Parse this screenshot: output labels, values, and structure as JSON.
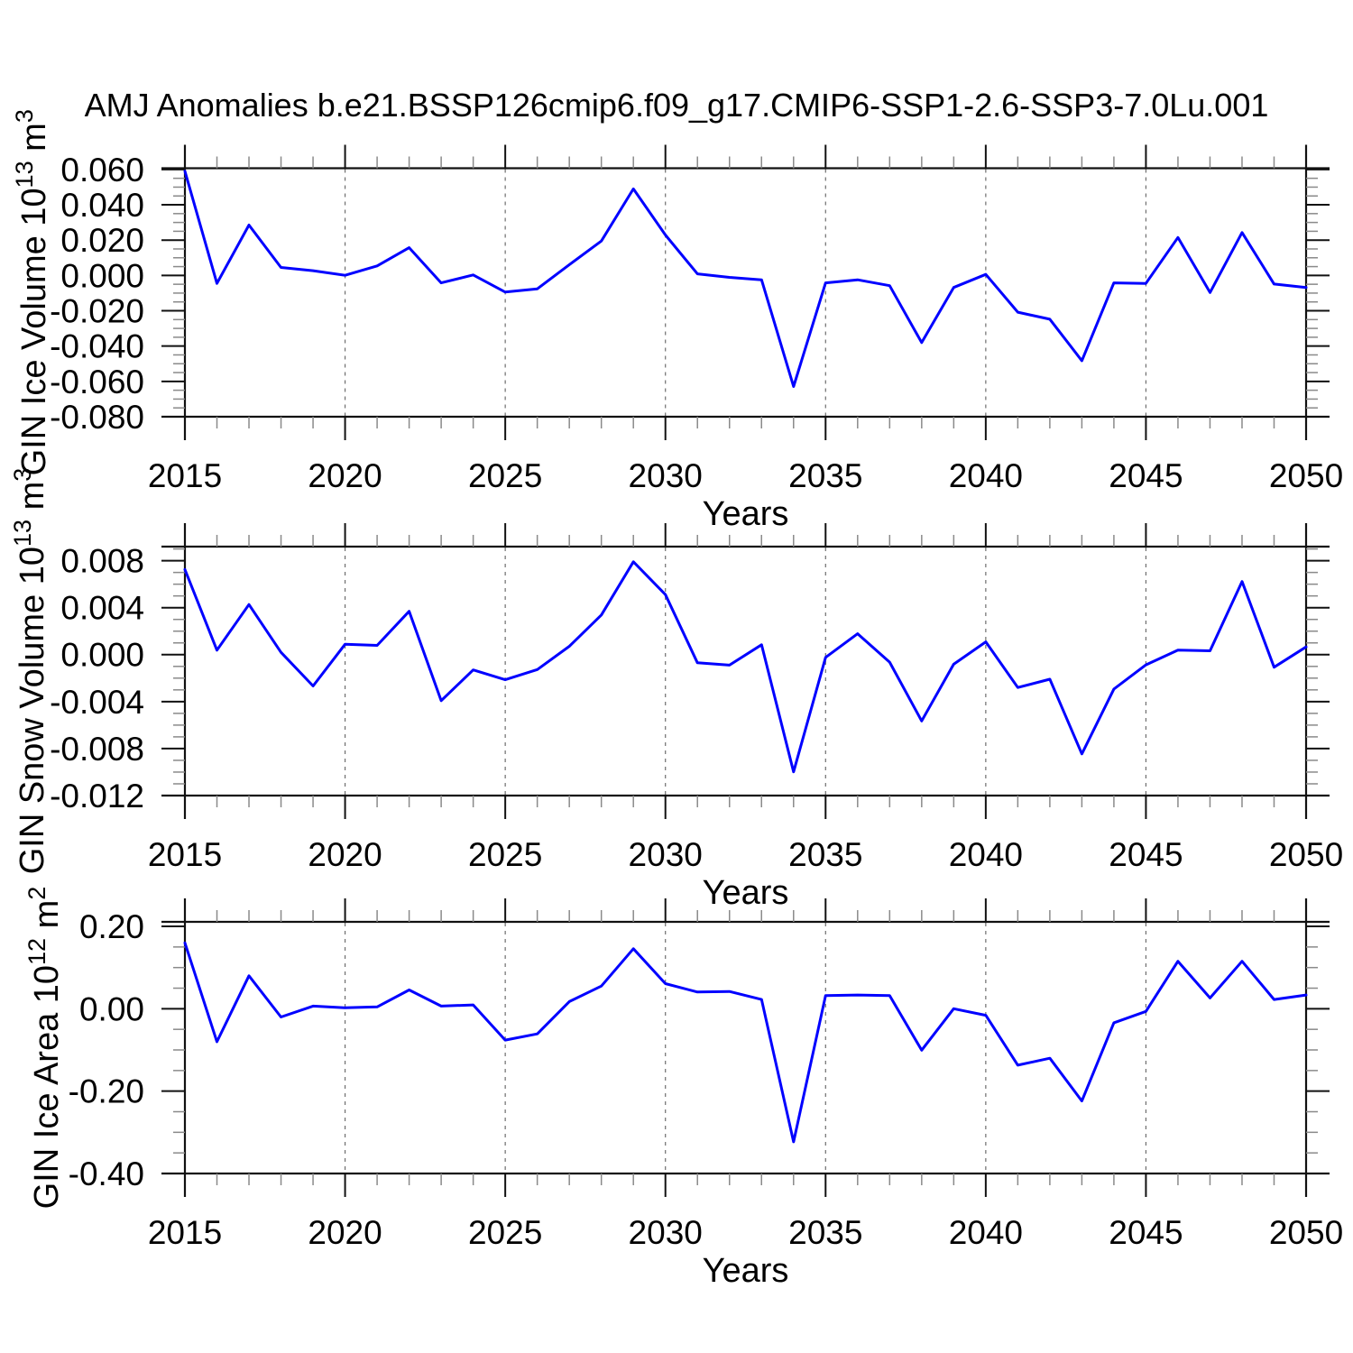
{
  "title": "AMJ Anomalies b.e21.BSSP126cmip6.f09_g17.CMIP6-SSP1-2.6-SSP3-7.0Lu.001",
  "style": {
    "line_color": "#0000ff",
    "frame_color": "#111111",
    "major_tick_color": "#111111",
    "minor_tick_color": "#8a8a8a",
    "grid_color": "#6e6e6e",
    "text_color": "#000000",
    "background": "#ffffff"
  },
  "chart_data": [
    {
      "type": "line",
      "name": "GIN Ice Volume anomalies",
      "ylabel": "GIN Ice Volume 10^13 m^3",
      "xlabel": "Years",
      "xlim": [
        2015,
        2050
      ],
      "xticks": [
        2015,
        2020,
        2025,
        2030,
        2035,
        2040,
        2045,
        2050
      ],
      "xtick_labels": [
        "2015",
        "2020",
        "2025",
        "2030",
        "2035",
        "2040",
        "2045",
        "2050"
      ],
      "xtick_minor_step": 1,
      "grid_years": [
        2020,
        2025,
        2030,
        2035,
        2040,
        2045
      ],
      "ylim": [
        -0.08,
        0.0607
      ],
      "yticks": [
        0.06,
        0.04,
        0.02,
        0.0,
        -0.02,
        -0.04,
        -0.06,
        -0.08
      ],
      "ytick_labels": [
        "0.060",
        "0.040",
        "0.020",
        "0.000",
        "-0.020",
        "-0.040",
        "-0.060",
        "-0.080"
      ],
      "ytick_minor_step": 0.005,
      "x": [
        2015,
        2016,
        2017,
        2018,
        2019,
        2020,
        2021,
        2022,
        2023,
        2024,
        2025,
        2026,
        2027,
        2028,
        2029,
        2030,
        2031,
        2032,
        2033,
        2034,
        2035,
        2036,
        2037,
        2038,
        2039,
        2040,
        2041,
        2042,
        2043,
        2044,
        2045,
        2046,
        2047,
        2048,
        2049,
        2050
      ],
      "values": [
        0.059,
        -0.0045,
        0.0285,
        0.0045,
        0.0027,
        0.0001,
        0.0054,
        0.0157,
        -0.0042,
        0.0003,
        -0.0094,
        -0.0076,
        0.0061,
        0.0195,
        0.049,
        0.0229,
        0.0009,
        -0.0011,
        -0.0025,
        -0.0629,
        -0.0042,
        -0.0025,
        -0.0058,
        -0.038,
        -0.0068,
        0.0006,
        -0.0208,
        -0.0248,
        -0.0483,
        -0.0042,
        -0.0045,
        0.0215,
        -0.0097,
        0.0243,
        -0.0049,
        -0.0068
      ]
    },
    {
      "type": "line",
      "name": "GIN Snow Volume anomalies",
      "ylabel": "GIN Snow Volume 10^13 m^3",
      "xlabel": "Years",
      "xlim": [
        2015,
        2050
      ],
      "xticks": [
        2015,
        2020,
        2025,
        2030,
        2035,
        2040,
        2045,
        2050
      ],
      "xtick_labels": [
        "2015",
        "2020",
        "2025",
        "2030",
        "2035",
        "2040",
        "2045",
        "2050"
      ],
      "xtick_minor_step": 1,
      "grid_years": [
        2020,
        2025,
        2030,
        2035,
        2040,
        2045
      ],
      "ylim": [
        -0.012,
        0.0092
      ],
      "yticks": [
        0.008,
        0.004,
        0.0,
        -0.004,
        -0.008,
        -0.012
      ],
      "ytick_labels": [
        "0.008",
        "0.004",
        "0.000",
        "-0.004",
        "-0.008",
        "-0.012"
      ],
      "ytick_minor_step": 0.001,
      "x": [
        2015,
        2016,
        2017,
        2018,
        2019,
        2020,
        2021,
        2022,
        2023,
        2024,
        2025,
        2026,
        2027,
        2028,
        2029,
        2030,
        2031,
        2032,
        2033,
        2034,
        2035,
        2036,
        2037,
        2038,
        2039,
        2040,
        2041,
        2042,
        2043,
        2044,
        2045,
        2046,
        2047,
        2048,
        2049,
        2050
      ],
      "values": [
        0.00725,
        0.00038,
        0.00427,
        0.0002,
        -0.00267,
        0.00089,
        0.00079,
        0.00369,
        -0.00392,
        -0.0013,
        -0.00214,
        -0.00127,
        0.00071,
        0.00338,
        0.00791,
        0.00511,
        -0.00069,
        -0.00089,
        0.00084,
        -0.00998,
        -0.00023,
        0.00178,
        -0.00064,
        -0.00565,
        -0.00082,
        0.00109,
        -0.0028,
        -0.00209,
        -0.00845,
        -0.00293,
        -0.00087,
        0.00038,
        0.00033,
        0.00623,
        -0.00107,
        0.00066
      ]
    },
    {
      "type": "line",
      "name": "GIN Ice Area anomalies",
      "ylabel": "GIN Ice Area 10^12 m^2",
      "xlabel": "Years",
      "xlim": [
        2015,
        2050
      ],
      "xticks": [
        2015,
        2020,
        2025,
        2030,
        2035,
        2040,
        2045,
        2050
      ],
      "xtick_labels": [
        "2015",
        "2020",
        "2025",
        "2030",
        "2035",
        "2040",
        "2045",
        "2050"
      ],
      "xtick_minor_step": 1,
      "grid_years": [
        2020,
        2025,
        2030,
        2035,
        2040,
        2045
      ],
      "ylim": [
        -0.4,
        0.211
      ],
      "yticks": [
        0.2,
        0.0,
        -0.2,
        -0.4
      ],
      "ytick_labels": [
        "0.20",
        "0.00",
        "-0.20",
        "-0.40"
      ],
      "ytick_minor_step": 0.05,
      "x": [
        2015,
        2016,
        2017,
        2018,
        2019,
        2020,
        2021,
        2022,
        2023,
        2024,
        2025,
        2026,
        2027,
        2028,
        2029,
        2030,
        2031,
        2032,
        2033,
        2034,
        2035,
        2036,
        2037,
        2038,
        2039,
        2040,
        2041,
        2042,
        2043,
        2044,
        2045,
        2046,
        2047,
        2048,
        2049,
        2050
      ],
      "values": [
        0.16,
        -0.08,
        0.08,
        -0.02,
        0.0065,
        0.0022,
        0.0044,
        0.0457,
        0.0065,
        0.0093,
        -0.0761,
        -0.0609,
        0.0174,
        0.055,
        0.1457,
        0.0609,
        0.0407,
        0.042,
        0.0224,
        -0.3232,
        0.032,
        0.0333,
        0.032,
        -0.1007,
        0.0,
        -0.0159,
        -0.137,
        -0.1202,
        -0.2239,
        -0.0341,
        -0.0065,
        0.1152,
        0.0261,
        0.1152,
        0.0224,
        0.0333
      ]
    }
  ]
}
